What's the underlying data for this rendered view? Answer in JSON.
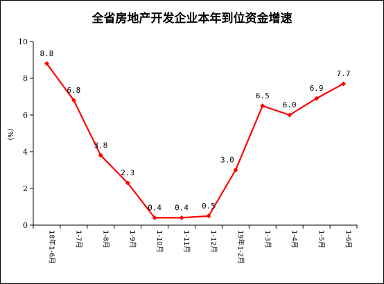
{
  "chart_data": {
    "type": "line",
    "title": "全省房地产开发企业本年到位资金增速",
    "ylabel": "(%)",
    "xlabel": "",
    "categories": [
      "18年1-6月",
      "1-7月",
      "1-8月",
      "1-9月",
      "1-10月",
      "1-11月",
      "1-12月",
      "19年1-2月",
      "1-3月",
      "1-4月",
      "1-5月",
      "1-6月"
    ],
    "series": [
      {
        "values": [
          8.8,
          6.8,
          3.8,
          2.3,
          0.4,
          0.4,
          0.5,
          3.0,
          6.5,
          6.0,
          6.9,
          7.7
        ],
        "value_labels": [
          "8.8",
          "6.8",
          "3.8",
          "2.3",
          "0.4",
          "0.4",
          "0.5",
          "3.0",
          "6.5",
          "6.0",
          "6.9",
          "7.7"
        ],
        "color": "#ff0000"
      }
    ],
    "ylim": [
      0,
      10
    ],
    "yticks": [
      "0",
      "2",
      "4",
      "6",
      "8",
      "10"
    ],
    "grid": false,
    "legend": "none"
  }
}
